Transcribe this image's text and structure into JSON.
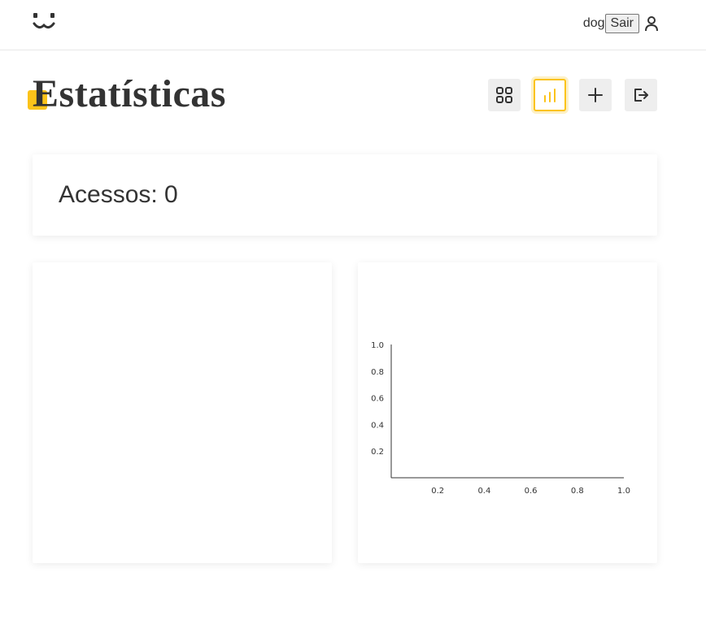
{
  "header": {
    "logo_icon": "dog-face-icon",
    "username": "dog",
    "logout_label": "Sair",
    "user_icon": "person-icon"
  },
  "page": {
    "title": "Estatísticas",
    "accent_color": "#fbc31a"
  },
  "toolbar": {
    "buttons": [
      {
        "icon": "grid-icon",
        "active": false
      },
      {
        "icon": "bar-chart-icon",
        "active": true
      },
      {
        "icon": "plus-icon",
        "active": false
      },
      {
        "icon": "logout-icon",
        "active": false
      }
    ]
  },
  "stats": {
    "accesses_text": "Acessos: 0"
  },
  "chart_data": {
    "type": "line",
    "title": "",
    "xlabel": "",
    "ylabel": "",
    "xlim": [
      0,
      1.0
    ],
    "ylim": [
      0,
      1.0
    ],
    "x_ticks": [
      "0.2",
      "0.4",
      "0.6",
      "0.8",
      "1.0"
    ],
    "y_ticks": [
      "0.2",
      "0.4",
      "0.6",
      "0.8",
      "1.0"
    ],
    "series": [],
    "grid": false
  }
}
